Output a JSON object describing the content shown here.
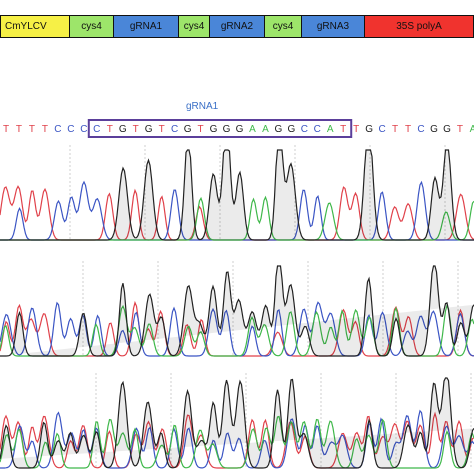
{
  "construct": {
    "segments": [
      {
        "label": "CmYLCV",
        "color": "#f6f046"
      },
      {
        "label": "cys4",
        "color": "#9de56a"
      },
      {
        "label": "gRNA1",
        "color": "#4a86d8"
      },
      {
        "label": "cys4",
        "color": "#9de56a"
      },
      {
        "label": "gRNA2",
        "color": "#4a86d8"
      },
      {
        "label": "cys4",
        "color": "#9de56a"
      },
      {
        "label": "gRNA3",
        "color": "#4a86d8"
      },
      {
        "label": "35S polyA",
        "color": "#f0332e"
      }
    ]
  },
  "target": {
    "label": "gRNA1",
    "box_color": "#5b3f9b"
  },
  "sequence": {
    "bases": [
      "T",
      "T",
      "T",
      "T",
      "C",
      "C",
      "C",
      "C",
      "T",
      "G",
      "T",
      "G",
      "T",
      "C",
      "G",
      "T",
      "G",
      "G",
      "G",
      "A",
      "A",
      "G",
      "G",
      "C",
      "C",
      "A",
      "T",
      "T",
      "G",
      "C",
      "T",
      "T",
      "C",
      "G",
      "G",
      "T",
      "A"
    ],
    "target_first_index": 7,
    "target_last_index": 26
  },
  "base_colors": {
    "A": "#3fb84a",
    "C": "#3b55c4",
    "G": "#222222",
    "T": "#e0414a"
  }
}
